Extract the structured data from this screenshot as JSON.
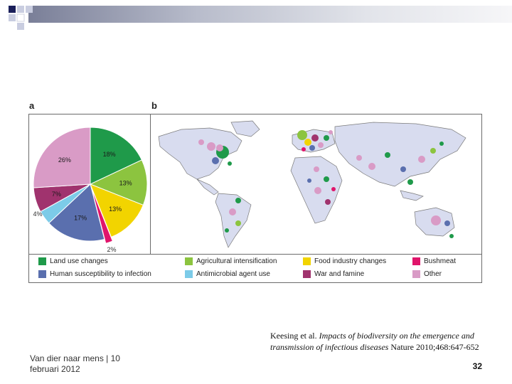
{
  "figure": {
    "panel_a_label": "a",
    "panel_b_label": "b"
  },
  "chart_data": {
    "type": "pie",
    "categories": [
      "Land use changes",
      "Agricultural intensification",
      "Food industry changes",
      "Bushmeat",
      "Human susceptibility to infection",
      "Antimicrobial agent use",
      "War and famine",
      "Other"
    ],
    "values": [
      18,
      13,
      13,
      2,
      17,
      4,
      7,
      26
    ],
    "labels": [
      "18%",
      "13%",
      "13%",
      "2%",
      "17%",
      "4%",
      "7%",
      "26%"
    ],
    "colors": [
      "#1f9a4a",
      "#8cc43f",
      "#f2d400",
      "#e0156b",
      "#5a6fae",
      "#7ccbe8",
      "#a0336e",
      "#d99bc6"
    ]
  },
  "legend": {
    "items": [
      {
        "label": "Land use changes",
        "color": "#1f9a4a"
      },
      {
        "label": "Agricultural intensification",
        "color": "#8cc43f"
      },
      {
        "label": "Food industry changes",
        "color": "#f2d400"
      },
      {
        "label": "Bushmeat",
        "color": "#e0156b"
      },
      {
        "label": "Human susceptibility to infection",
        "color": "#5a6fae"
      },
      {
        "label": "Antimicrobial agent use",
        "color": "#7ccbe8"
      },
      {
        "label": "War and famine",
        "color": "#a0336e"
      },
      {
        "label": "Other",
        "color": "#d99bc6"
      }
    ]
  },
  "citation": {
    "authors": "Keesing et al.",
    "title": "Impacts of biodiversity on the emergence and transmission of infectious diseases",
    "source": "Nature 2010;468:647-652"
  },
  "footer": {
    "left_line1": "Van dier naar mens | 10",
    "left_line2": "februari 2012",
    "page_number": "32"
  }
}
